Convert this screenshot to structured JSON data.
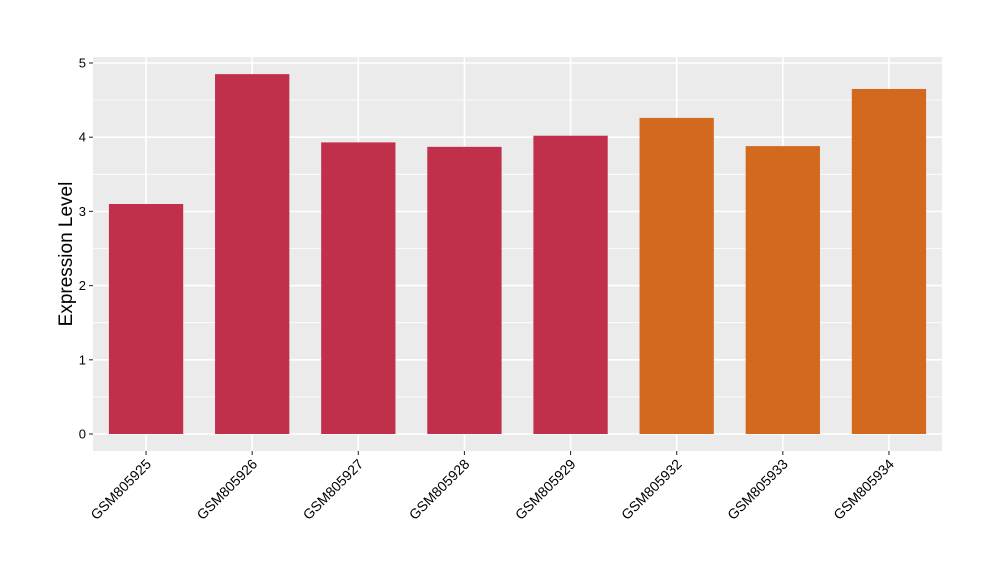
{
  "chart_data": {
    "type": "bar",
    "title": "",
    "xlabel": "",
    "ylabel": "Expression Level",
    "ylim": [
      -0.25,
      5.08
    ],
    "yticks": [
      0,
      1,
      2,
      3,
      4,
      5
    ],
    "grid": true,
    "legend": "none",
    "categories": [
      "GSM805925",
      "GSM805926",
      "GSM805927",
      "GSM805928",
      "GSM805929",
      "GSM805932",
      "GSM805933",
      "GSM805934"
    ],
    "values": [
      3.1,
      4.85,
      3.93,
      3.87,
      4.02,
      4.26,
      3.88,
      4.65
    ],
    "bar_colors": [
      "#C1304A",
      "#C1304A",
      "#C1304A",
      "#C1304A",
      "#C1304A",
      "#D2691F",
      "#D2691F",
      "#D2691F"
    ],
    "panel_background": "#EBEBEB"
  }
}
